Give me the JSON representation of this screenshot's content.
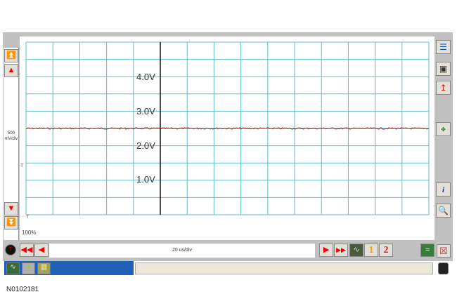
{
  "scope": {
    "vertical_scale": "500\nmV/div",
    "vertical_scale_value": "500",
    "vertical_scale_unit": "mV/div",
    "timebase": "20 us/div",
    "zoom": "100%",
    "trigger_marker": "T",
    "voltage_labels": [
      "4.0V",
      "3.0V",
      "2.0V",
      "1.0V"
    ],
    "grid": {
      "columns": 15,
      "rows": 10,
      "color": "#5bbfc7"
    },
    "trace": {
      "color": "#8b1a1a",
      "level_volts": 2.5,
      "volts_per_div": 0.5
    }
  },
  "channels": {
    "ch1": "1",
    "ch2": "2",
    "ch1_color": "#e8a020",
    "ch2_color": "#d02020"
  },
  "icons": {
    "left": [
      "double-up-arrow-icon",
      "up-arrow-icon",
      "down-arrow-icon",
      "double-down-arrow-icon"
    ],
    "right": [
      "list-icon",
      "camera-icon",
      "probe-icon",
      "cursor-icon",
      "info-icon",
      "zoom-icon"
    ],
    "bottom": [
      "trigger-icon",
      "rewind-icon",
      "step-back-icon",
      "step-forward-icon",
      "fast-forward-icon",
      "waveform-icon",
      "scope-icon",
      "close-icon"
    ]
  },
  "reference": "N0102181"
}
